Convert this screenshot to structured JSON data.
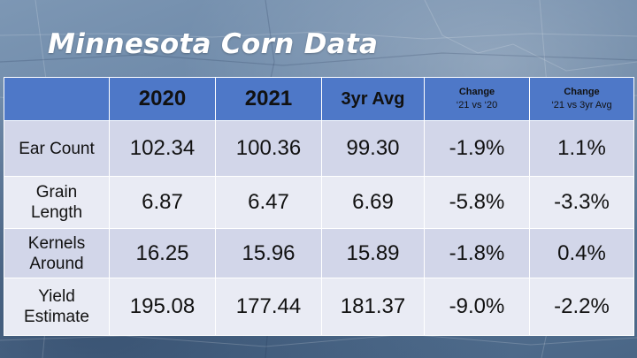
{
  "title": "Minnesota Corn Data",
  "table": {
    "headers": {
      "blank": "",
      "y2020": "2020",
      "y2021": "2021",
      "avg": "3yr Avg",
      "chg1_main": "Change",
      "chg1_sub": "‘21 vs ‘20",
      "chg2_main": "Change",
      "chg2_sub": "‘21 vs 3yr Avg"
    },
    "rows": [
      {
        "label_l1": "Ear Count",
        "label_l2": "",
        "v2020": "102.34",
        "v2021": "100.36",
        "avg": "99.30",
        "chg_prev": "-1.9%",
        "chg_avg": "1.1%"
      },
      {
        "label_l1": "Grain",
        "label_l2": "Length",
        "v2020": "6.87",
        "v2021": "6.47",
        "avg": "6.69",
        "chg_prev": "-5.8%",
        "chg_avg": "-3.3%"
      },
      {
        "label_l1": "Kernels",
        "label_l2": "Around",
        "v2020": "16.25",
        "v2021": "15.96",
        "avg": "15.89",
        "chg_prev": "-1.8%",
        "chg_avg": "0.4%"
      },
      {
        "label_l1": "Yield",
        "label_l2": "Estimate",
        "v2020": "195.08",
        "v2021": "177.44",
        "avg": "181.37",
        "chg_prev": "-9.0%",
        "chg_avg": "-2.2%"
      }
    ]
  },
  "colors": {
    "header_bg": "#4e78c8",
    "row_dark": "#d2d6e9",
    "row_light": "#e9ebf4"
  }
}
